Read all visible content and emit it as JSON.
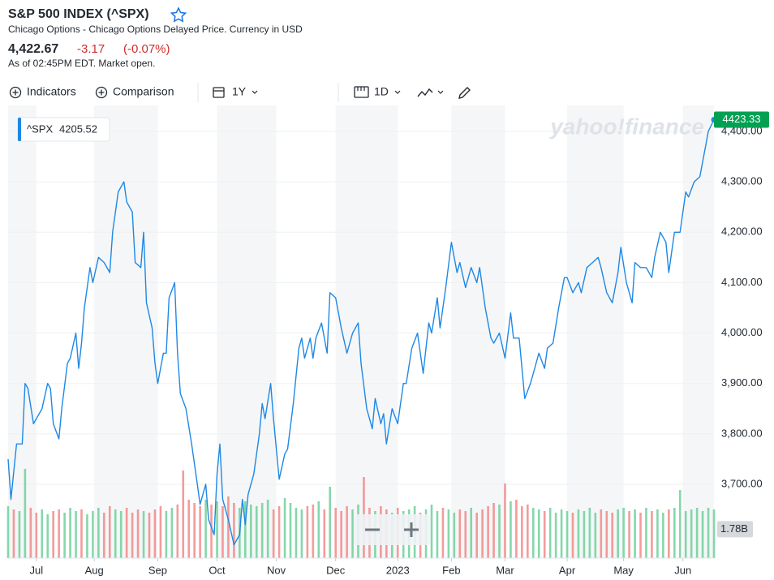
{
  "header": {
    "title": "S&P 500 INDEX (^SPX)",
    "subtitle": "Chicago Options - Chicago Options Delayed Price. Currency in USD",
    "price": "4,422.67",
    "change": "-3.17",
    "change_percent": "(-0.07%)",
    "as_of": "As of 02:45PM EDT. Market open."
  },
  "toolbar": {
    "indicators": "Indicators",
    "comparison": "Comparison",
    "range": "1Y",
    "interval": "1D"
  },
  "chart_data": {
    "type": "line",
    "watermark": "yahoo!finance",
    "legend": {
      "symbol": "^SPX",
      "value": "4205.52"
    },
    "last_label": "4423.33",
    "color": "#1e88e5",
    "grid": true,
    "x": [
      0,
      1,
      3,
      5,
      6,
      7,
      9,
      10,
      12,
      14,
      15,
      16,
      18,
      19,
      21,
      22,
      24,
      25,
      26,
      27,
      29,
      30,
      32,
      34,
      36,
      37,
      39,
      41,
      42,
      44,
      45,
      47,
      48,
      49,
      51,
      52,
      53,
      55,
      56,
      57,
      59,
      60,
      61,
      63,
      65,
      67,
      68,
      70,
      71,
      73,
      74,
      75,
      76,
      78,
      80,
      82,
      83,
      84,
      85,
      87,
      89,
      90,
      91,
      93,
      94,
      96,
      98,
      99,
      101,
      103,
      104,
      105,
      107,
      108,
      109,
      111,
      113,
      114,
      116,
      118,
      120,
      122,
      124,
      125,
      127,
      129,
      130,
      132,
      133,
      134,
      136,
      138,
      140,
      141,
      143,
      145,
      147,
      149,
      150,
      152,
      153,
      155,
      157,
      159,
      160,
      162,
      164,
      166,
      167,
      169,
      171,
      172,
      174,
      176,
      178,
      179,
      181,
      183,
      185,
      186,
      188,
      190,
      191,
      193,
      195,
      197,
      198,
      200,
      202,
      203,
      205,
      207,
      209,
      210,
      212,
      214,
      216,
      217,
      219,
      221,
      222,
      224,
      226,
      228,
      229,
      231,
      233,
      234,
      236,
      238,
      240,
      241,
      243,
      245,
      247,
      248,
      250
    ],
    "series": [
      {
        "name": "^SPX",
        "color": "#1e88e5",
        "values": [
          3750,
          3670,
          3780,
          3780,
          3900,
          3890,
          3820,
          3830,
          3850,
          3900,
          3890,
          3820,
          3790,
          3850,
          3940,
          3950,
          4000,
          3930,
          3980,
          4050,
          4130,
          4100,
          4150,
          4140,
          4120,
          4200,
          4280,
          4300,
          4260,
          4240,
          4140,
          4130,
          4200,
          4060,
          4010,
          3940,
          3900,
          3960,
          3960,
          4070,
          4100,
          3960,
          3880,
          3850,
          3780,
          3700,
          3660,
          3700,
          3630,
          3600,
          3720,
          3780,
          3670,
          3630,
          3580,
          3600,
          3670,
          3620,
          3680,
          3720,
          3800,
          3860,
          3830,
          3900,
          3830,
          3710,
          3760,
          3770,
          3860,
          3970,
          3990,
          3950,
          3990,
          3950,
          3990,
          4020,
          3960,
          4080,
          4070,
          4010,
          3960,
          4000,
          4020,
          3940,
          3850,
          3810,
          3870,
          3820,
          3840,
          3780,
          3850,
          3820,
          3900,
          3900,
          3970,
          4000,
          3920,
          4020,
          4000,
          4070,
          4010,
          4090,
          4180,
          4120,
          4140,
          4090,
          4130,
          4100,
          4130,
          4050,
          3990,
          3980,
          4000,
          3950,
          4040,
          3990,
          3990,
          3870,
          3900,
          3920,
          3960,
          3930,
          3970,
          3980,
          4050,
          4110,
          4110,
          4080,
          4100,
          4080,
          4130,
          4140,
          4150,
          4130,
          4080,
          4060,
          4120,
          4170,
          4100,
          4060,
          4140,
          4130,
          4130,
          4110,
          4150,
          4200,
          4180,
          4120,
          4200,
          4200,
          4280,
          4270,
          4300,
          4310,
          4370,
          4400,
          4423.33
        ]
      }
    ],
    "volume": {
      "x": [
        0,
        2,
        4,
        6,
        8,
        10,
        12,
        14,
        16,
        18,
        20,
        22,
        24,
        26,
        28,
        30,
        32,
        34,
        36,
        38,
        40,
        42,
        44,
        46,
        48,
        50,
        52,
        54,
        56,
        58,
        60,
        62,
        64,
        66,
        68,
        70,
        72,
        74,
        76,
        78,
        80,
        82,
        84,
        86,
        88,
        90,
        92,
        94,
        96,
        98,
        100,
        102,
        104,
        106,
        108,
        110,
        112,
        114,
        116,
        118,
        120,
        122,
        124,
        126,
        128,
        130,
        132,
        134,
        136,
        138,
        140,
        142,
        144,
        146,
        148,
        150,
        152,
        154,
        156,
        158,
        160,
        162,
        164,
        166,
        168,
        170,
        172,
        174,
        176,
        178,
        180,
        182,
        184,
        186,
        188,
        190,
        192,
        194,
        196,
        198,
        200,
        202,
        204,
        206,
        208,
        210,
        212,
        214,
        216,
        218,
        220,
        222,
        224,
        226,
        228,
        230,
        232,
        234,
        236,
        238,
        240,
        242,
        244,
        246,
        248,
        250
      ],
      "values": [
        3.2,
        3.0,
        2.9,
        5.5,
        3.1,
        2.8,
        3.0,
        2.7,
        2.9,
        3.0,
        2.8,
        3.1,
        2.9,
        3.0,
        2.7,
        2.9,
        3.1,
        2.8,
        3.2,
        3.0,
        2.9,
        3.1,
        2.8,
        3.0,
        2.9,
        2.8,
        3.0,
        3.2,
        2.9,
        3.1,
        3.3,
        5.4,
        3.6,
        3.4,
        3.2,
        3.6,
        3.3,
        3.5,
        3.2,
        3.8,
        3.4,
        3.1,
        3.5,
        3.3,
        3.2,
        3.4,
        3.6,
        3.0,
        3.2,
        3.7,
        3.4,
        3.1,
        3.0,
        3.2,
        3.3,
        3.5,
        3.0,
        4.4,
        3.1,
        2.9,
        3.2,
        3.0,
        3.3,
        5.0,
        3.1,
        2.9,
        3.2,
        3.0,
        2.8,
        3.1,
        2.9,
        3.0,
        3.2,
        2.8,
        3.0,
        3.3,
        2.9,
        3.1,
        3.0,
        2.8,
        3.0,
        2.9,
        3.1,
        2.8,
        3.0,
        3.2,
        3.4,
        3.3,
        4.6,
        3.5,
        3.6,
        3.2,
        3.3,
        3.1,
        3.0,
        2.9,
        3.1,
        2.8,
        3.0,
        2.9,
        2.8,
        3.0,
        2.9,
        3.1,
        2.8,
        3.0,
        2.9,
        2.8,
        3.0,
        3.1,
        2.9,
        3.0,
        2.8,
        3.1,
        2.9,
        3.0,
        2.8,
        3.0,
        3.1,
        4.2,
        2.9,
        3.0,
        3.1,
        2.9,
        3.1,
        3.0
      ],
      "ylim": [
        0,
        7.4
      ],
      "yticks": [
        {
          "value": 1.78,
          "label": "1.78B"
        }
      ]
    },
    "xlim": [
      0,
      250
    ],
    "xticks": [
      {
        "value": 10,
        "label": "Jul"
      },
      {
        "value": 30.5,
        "label": "Aug"
      },
      {
        "value": 53,
        "label": "Sep"
      },
      {
        "value": 74,
        "label": "Oct"
      },
      {
        "value": 95,
        "label": "Nov"
      },
      {
        "value": 116,
        "label": "Dec"
      },
      {
        "value": 138,
        "label": "2023"
      },
      {
        "value": 157,
        "label": "Feb"
      },
      {
        "value": 176,
        "label": "Mar"
      },
      {
        "value": 198,
        "label": "Apr"
      },
      {
        "value": 218,
        "label": "May"
      },
      {
        "value": 239,
        "label": "Jun"
      }
    ],
    "ylim": [
      3553.5,
      4451.5
    ],
    "yticks": [
      {
        "value": 3700,
        "label": "3,700.00"
      },
      {
        "value": 3800,
        "label": "3,800.00"
      },
      {
        "value": 3900,
        "label": "3,900.00"
      },
      {
        "value": 4000,
        "label": "4,000.00"
      },
      {
        "value": 4100,
        "label": "4,100.00"
      },
      {
        "value": 4200,
        "label": "4,200.00"
      },
      {
        "value": 4300,
        "label": "4,300.00"
      },
      {
        "value": 4400,
        "label": "4,400.00"
      }
    ]
  }
}
